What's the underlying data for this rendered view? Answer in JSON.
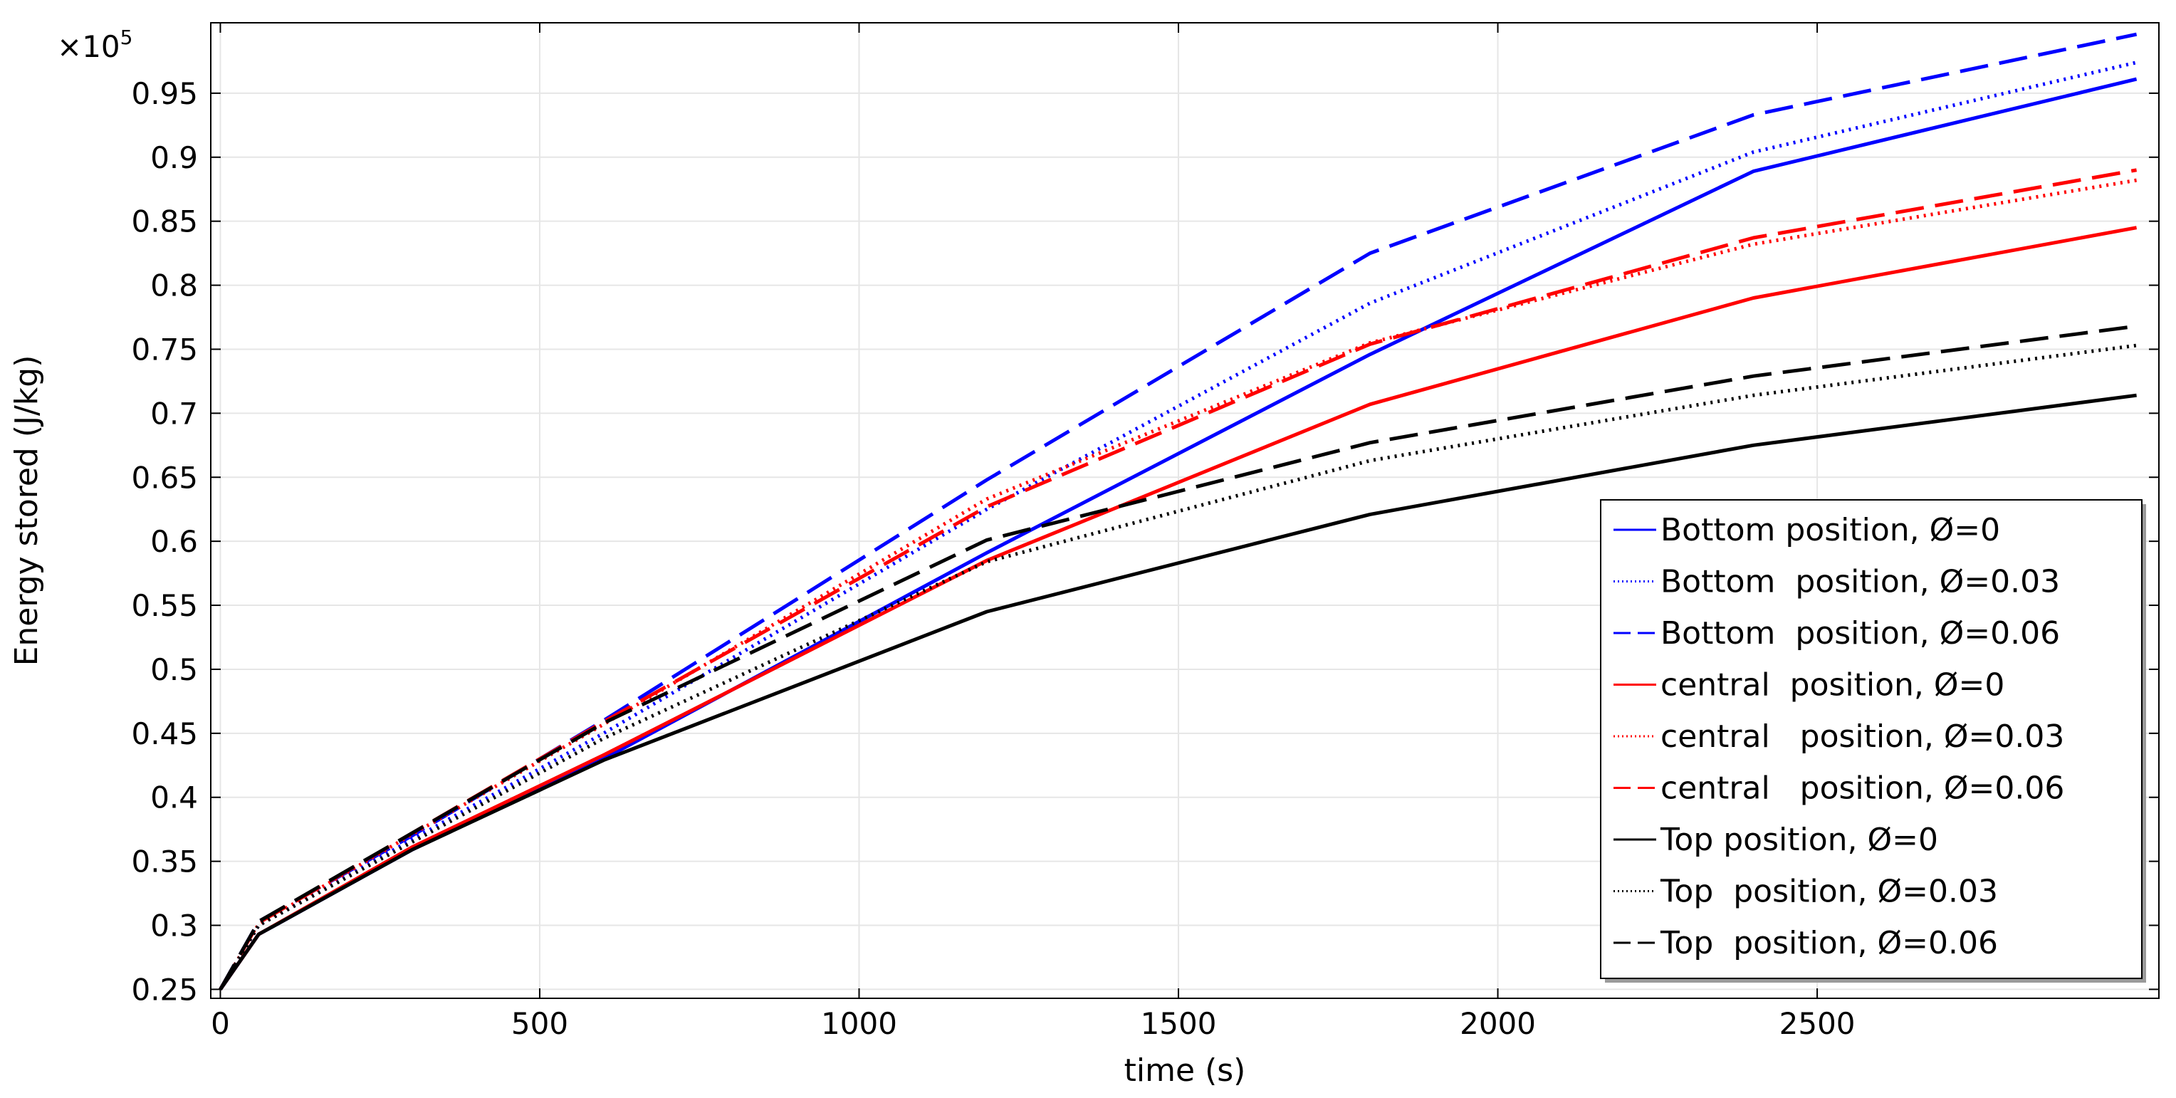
{
  "chart_data": {
    "type": "line",
    "xlabel": "time (s)",
    "ylabel": "Energy stored (J/kg)",
    "y_multiplier_base": "×10",
    "y_multiplier_exp": "5",
    "xlim": [
      -15,
      3035
    ],
    "ylim": [
      0.243,
      1.005
    ],
    "x_ticks": [
      0,
      500,
      1000,
      1500,
      2000,
      2500
    ],
    "x_tick_labels": [
      "0",
      "500",
      "1000",
      "1500",
      "2000",
      "2500"
    ],
    "y_ticks": [
      0.25,
      0.3,
      0.35,
      0.4,
      0.45,
      0.5,
      0.55,
      0.6,
      0.65,
      0.7,
      0.75,
      0.8,
      0.85,
      0.9,
      0.95
    ],
    "y_tick_labels": [
      "0.25",
      "0.3",
      "0.35",
      "0.4",
      "0.45",
      "0.5",
      "0.55",
      "0.6",
      "0.65",
      "0.7",
      "0.75",
      "0.8",
      "0.85",
      "0.9",
      "0.95"
    ],
    "grid": true,
    "legend_position": "bottom-right",
    "x": [
      0,
      60,
      300,
      600,
      1200,
      1800,
      2400,
      3000
    ],
    "series": [
      {
        "name": "Bottom position, Ø=0",
        "color": "#0000ff",
        "dash": "solid",
        "values": [
          0.25,
          0.293,
          0.359,
          0.43,
          0.591,
          0.746,
          0.889,
          0.961
        ]
      },
      {
        "name": "Bottom  position, Ø=0.03",
        "color": "#0000ff",
        "dash": "dotted",
        "values": [
          0.25,
          0.3,
          0.367,
          0.45,
          0.625,
          0.786,
          0.904,
          0.974
        ]
      },
      {
        "name": "Bottom  position, Ø=0.06",
        "color": "#0000ff",
        "dash": "dashed",
        "values": [
          0.25,
          0.303,
          0.37,
          0.46,
          0.648,
          0.825,
          0.933,
          0.996
        ]
      },
      {
        "name": "central  position, Ø=0",
        "color": "#ff0000",
        "dash": "solid",
        "values": [
          0.25,
          0.293,
          0.361,
          0.433,
          0.585,
          0.707,
          0.79,
          0.845
        ]
      },
      {
        "name": "central   position, Ø=0.03",
        "color": "#ff0000",
        "dash": "dotted",
        "values": [
          0.25,
          0.301,
          0.371,
          0.457,
          0.633,
          0.755,
          0.832,
          0.882
        ]
      },
      {
        "name": "central   position, Ø=0.06",
        "color": "#ff0000",
        "dash": "dashed",
        "values": [
          0.25,
          0.302,
          0.372,
          0.459,
          0.627,
          0.754,
          0.837,
          0.89
        ]
      },
      {
        "name": "Top position, Ø=0",
        "color": "#000000",
        "dash": "solid",
        "values": [
          0.25,
          0.293,
          0.359,
          0.429,
          0.545,
          0.621,
          0.675,
          0.714
        ]
      },
      {
        "name": "Top  position, Ø=0.03",
        "color": "#000000",
        "dash": "dotted",
        "values": [
          0.25,
          0.3,
          0.365,
          0.446,
          0.584,
          0.663,
          0.714,
          0.753
        ]
      },
      {
        "name": "Top  position, Ø=0.06",
        "color": "#000000",
        "dash": "dashed",
        "values": [
          0.25,
          0.303,
          0.372,
          0.458,
          0.601,
          0.677,
          0.729,
          0.768
        ]
      }
    ]
  }
}
